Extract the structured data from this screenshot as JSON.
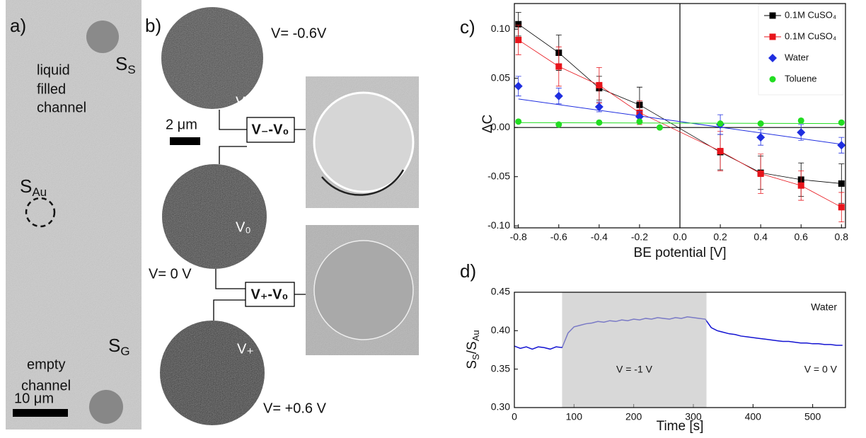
{
  "panel_a": {
    "label": "a)",
    "channel_top": [
      "liquid",
      "filled",
      "channel"
    ],
    "s_s": {
      "text": "S",
      "sub": "S"
    },
    "s_au": {
      "text": "S",
      "sub": "Au"
    },
    "channel_bottom": [
      "empty",
      "channel"
    ],
    "s_g": {
      "text": "S",
      "sub": "G"
    },
    "scale": "10 μm"
  },
  "panel_b": {
    "label": "b)",
    "v_top": "V= -0.6V",
    "v_mid": "V= 0 V",
    "v_bot": "V= +0.6 V",
    "img_top": "V₋",
    "img_mid": "V₀",
    "img_bot": "V₊",
    "scale": "2 μm",
    "box_top": "V₋-V₀",
    "box_bot": "V₊-V₀"
  },
  "chart_data": [
    {
      "type": "scatter",
      "panel_label": "c)",
      "x_label": "BE potential [V]",
      "y_label": "ΔC",
      "xlim": [
        -0.82,
        0.82
      ],
      "ylim": [
        -0.102,
        0.126
      ],
      "xticks": [
        -0.8,
        -0.6,
        -0.4,
        -0.2,
        {
          "value": 0,
          "label": "0.0"
        },
        0.2,
        0.4,
        0.6,
        0.8
      ],
      "yticks": [
        {
          "value": 0.1,
          "label": "0.10"
        },
        {
          "value": 0.05,
          "label": "0.05"
        },
        {
          "value": 0,
          "label": "0.00"
        },
        {
          "value": -0.05,
          "label": "-0.05"
        },
        {
          "value": -0.1,
          "label": "-0.10"
        }
      ],
      "series": [
        {
          "name": "0.1M CuSO₄",
          "color": "#000000",
          "marker": "square",
          "line": true,
          "x": [
            -0.8,
            -0.6,
            -0.4,
            -0.2,
            0.2,
            0.4,
            0.6,
            0.8
          ],
          "values": [
            0.105,
            0.076,
            0.04,
            0.023,
            -0.025,
            -0.046,
            -0.053,
            -0.057
          ],
          "errors": [
            0.012,
            0.018,
            0.012,
            0.018,
            0.018,
            0.017,
            0.017,
            0.02
          ]
        },
        {
          "name": "0.1M CuSO₄",
          "color": "#e8141b",
          "marker": "square",
          "line": true,
          "x": [
            -0.8,
            -0.6,
            -0.4,
            -0.2,
            0.2,
            0.4,
            0.6,
            0.8
          ],
          "values": [
            0.089,
            0.062,
            0.043,
            0.015,
            -0.024,
            -0.047,
            -0.059,
            -0.081
          ],
          "errors": [
            0.015,
            0.02,
            0.018,
            0.012,
            0.02,
            0.02,
            0.015,
            0.015
          ]
        },
        {
          "name": "Water",
          "color": "#1f2ee0",
          "marker": "diamond",
          "x": [
            -0.8,
            -0.6,
            -0.4,
            -0.2,
            0.2,
            0.4,
            0.6,
            0.8
          ],
          "values": [
            0.042,
            0.032,
            0.021,
            0.011,
            0.003,
            -0.01,
            -0.005,
            -0.018
          ],
          "errors": [
            0.01,
            0.008,
            0.005,
            0.005,
            0.01,
            0.008,
            0.008,
            0.008
          ],
          "fit": {
            "x": [
              -0.8,
              0.8
            ],
            "values": [
              0.029,
              -0.017
            ]
          }
        },
        {
          "name": "Toluene",
          "color": "#22dd22",
          "marker": "circle",
          "x": [
            -0.8,
            -0.6,
            -0.4,
            -0.2,
            -0.1,
            0.2,
            0.4,
            0.6,
            0.8
          ],
          "values": [
            0.006,
            0.003,
            0.005,
            0.006,
            0.0,
            0.004,
            0.004,
            0.007,
            0.005
          ],
          "fit": {
            "x": [
              -0.8,
              0.8
            ],
            "values": [
              0.005,
              0.004
            ]
          }
        }
      ]
    },
    {
      "type": "line",
      "panel_label": "d)",
      "x_label": "Time [s]",
      "y_label": {
        "s1": "S",
        "sub1": "S",
        "s2": "/S",
        "sub2": "Au"
      },
      "xlim": [
        0,
        555
      ],
      "ylim": [
        0.3,
        0.45
      ],
      "xticks": [
        0,
        100,
        200,
        300,
        400,
        500
      ],
      "yticks": [
        {
          "value": 0.3,
          "label": "0.30"
        },
        {
          "value": 0.35,
          "label": "0.35"
        },
        {
          "value": 0.4,
          "label": "0.40"
        },
        {
          "value": 0.45,
          "label": "0.45"
        }
      ],
      "shaded": [
        80,
        322
      ],
      "annotations": [
        "Water",
        "V = -1 V",
        "V = 0 V"
      ],
      "series": [
        {
          "name": "Water",
          "color": "#1414d2",
          "x": [
            0,
            10,
            20,
            30,
            40,
            50,
            60,
            70,
            80,
            90,
            100,
            110,
            120,
            130,
            140,
            150,
            160,
            170,
            180,
            190,
            200,
            210,
            220,
            230,
            240,
            250,
            260,
            270,
            280,
            290,
            300,
            310,
            320,
            330,
            340,
            350,
            360,
            370,
            380,
            390,
            400,
            410,
            420,
            430,
            440,
            450,
            460,
            470,
            480,
            490,
            500,
            510,
            520,
            530,
            540,
            550
          ],
          "values": [
            0.38,
            0.377,
            0.379,
            0.376,
            0.379,
            0.378,
            0.376,
            0.379,
            0.378,
            0.397,
            0.405,
            0.407,
            0.409,
            0.41,
            0.412,
            0.411,
            0.413,
            0.412,
            0.414,
            0.413,
            0.415,
            0.414,
            0.416,
            0.415,
            0.417,
            0.416,
            0.415,
            0.417,
            0.416,
            0.418,
            0.417,
            0.416,
            0.415,
            0.404,
            0.4,
            0.398,
            0.396,
            0.395,
            0.393,
            0.392,
            0.391,
            0.39,
            0.389,
            0.388,
            0.387,
            0.386,
            0.386,
            0.385,
            0.384,
            0.384,
            0.383,
            0.383,
            0.382,
            0.382,
            0.381,
            0.381
          ]
        }
      ]
    }
  ]
}
